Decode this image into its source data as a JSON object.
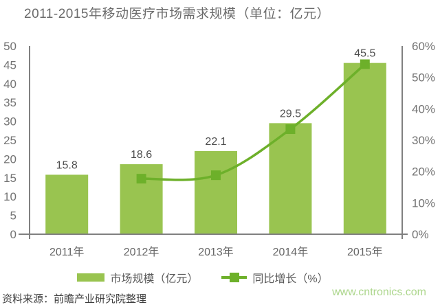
{
  "title": "2011-2015年移动医疗市场需求规模（单位：亿元）",
  "source_note": "资料来源：前瞻产业研究院整理",
  "watermark": "www.cntronics.com",
  "colors": {
    "bar": "#99C450",
    "line": "#6DB02A",
    "axis": "#808080",
    "tick_label": "#737373",
    "value_label": "#4D4D4D",
    "category_label": "#666666",
    "watermark": "#ACD68C"
  },
  "legend": {
    "market_size_label": "市场规模（亿元）",
    "growth_label": "同比增长（%）"
  },
  "chart_data": {
    "type": "bar+line",
    "title": "2011-2015年移动医疗市场需求规模（单位：亿元）",
    "categories": [
      "2011年",
      "2012年",
      "2013年",
      "2014年",
      "2015年"
    ],
    "series": [
      {
        "name": "市场规模（亿元）",
        "type": "bar",
        "axis": "left",
        "values": [
          15.8,
          18.6,
          22.1,
          29.5,
          45.5
        ]
      },
      {
        "name": "同比增长（%）",
        "type": "line",
        "axis": "right",
        "values": [
          null,
          17.7,
          18.8,
          33.5,
          54.2
        ]
      }
    ],
    "bar_value_labels": [
      "15.8",
      "18.6",
      "22.1",
      "29.5",
      "45.5"
    ],
    "left_axis": {
      "min": 0,
      "max": 50,
      "step": 5,
      "ticks": [
        "0",
        "5",
        "10",
        "15",
        "20",
        "25",
        "30",
        "35",
        "40",
        "45",
        "50"
      ]
    },
    "right_axis": {
      "min": 0,
      "max": 60,
      "step": 10,
      "ticks": [
        "0%",
        "10%",
        "20%",
        "30%",
        "40%",
        "50%",
        "60%"
      ]
    },
    "grid": false,
    "legend_position": "bottom"
  }
}
